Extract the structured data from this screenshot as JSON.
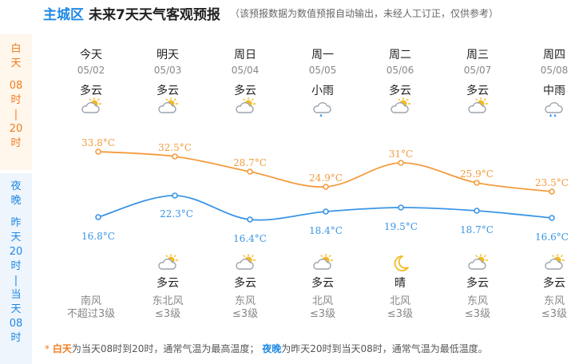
{
  "header": {
    "district": "主城区",
    "title": "未来7天天气客观预报",
    "note": "（该预报数据为数值预报自动输出，未经人工订正，仅供参考）"
  },
  "side": {
    "day": [
      "白",
      "天",
      "",
      "08",
      "时",
      "|",
      "20",
      "时"
    ],
    "night": [
      "夜",
      "晚",
      "",
      "昨",
      "天",
      "20",
      "时",
      "|",
      "当",
      "天",
      "08",
      "时"
    ]
  },
  "days": [
    {
      "name": "今天",
      "date": "05/02",
      "day_weather": "多云",
      "day_icon": "partly-cloudy-icon",
      "night_weather": "",
      "night_icon": "",
      "wind_dir": "南风",
      "wind_level": "不超过3级"
    },
    {
      "name": "明天",
      "date": "05/03",
      "day_weather": "多云",
      "day_icon": "partly-cloudy-icon",
      "night_weather": "多云",
      "night_icon": "partly-cloudy-icon",
      "wind_dir": "东北风",
      "wind_level": "≤3级"
    },
    {
      "name": "周日",
      "date": "05/04",
      "day_weather": "多云",
      "day_icon": "partly-cloudy-icon",
      "night_weather": "多云",
      "night_icon": "partly-cloudy-icon",
      "wind_dir": "东风",
      "wind_level": "≤3级"
    },
    {
      "name": "周一",
      "date": "05/05",
      "day_weather": "小雨",
      "day_icon": "light-rain-icon",
      "night_weather": "多云",
      "night_icon": "partly-cloudy-icon",
      "wind_dir": "北风",
      "wind_level": "≤3级"
    },
    {
      "name": "周二",
      "date": "05/06",
      "day_weather": "多云",
      "day_icon": "partly-cloudy-icon",
      "night_weather": "晴",
      "night_icon": "moon-icon",
      "wind_dir": "北风",
      "wind_level": "≤3级"
    },
    {
      "name": "周三",
      "date": "05/07",
      "day_weather": "多云",
      "day_icon": "partly-cloudy-icon",
      "night_weather": "多云",
      "night_icon": "partly-cloudy-icon",
      "wind_dir": "东风",
      "wind_level": "≤3级"
    },
    {
      "name": "周四",
      "date": "05/08",
      "day_weather": "中雨",
      "day_icon": "moderate-rain-icon",
      "night_weather": "多云",
      "night_icon": "partly-cloudy-icon",
      "wind_dir": "东风",
      "wind_level": "≤3级"
    }
  ],
  "chart_data": {
    "type": "line",
    "categories": [
      "05/02",
      "05/03",
      "05/04",
      "05/05",
      "05/06",
      "05/07",
      "05/08"
    ],
    "series": [
      {
        "values": [
          33.8,
          32.5,
          28.7,
          24.9,
          31,
          25.9,
          23.5
        ],
        "labels": [
          "33.8°C",
          "32.5°C",
          "28.7°C",
          "24.9°C",
          "31°C",
          "25.9°C",
          "23.5°C"
        ],
        "color": "#f39c3f"
      },
      {
        "values": [
          16.8,
          22.3,
          16.4,
          18.4,
          19.5,
          18.7,
          16.6
        ],
        "labels": [
          "16.8°C",
          "22.3°C",
          "16.4°C",
          "18.4°C",
          "19.5°C",
          "18.7°C",
          "16.6°C"
        ],
        "color": "#3a95e6"
      }
    ]
  },
  "footer": {
    "star": "*",
    "day_key": "白天",
    "day_text": "为当天08时到20时，通常气温为最高温度；",
    "night_key": "夜晚",
    "night_text": "为昨天20时到当天08时，通常气温为最低温度。"
  },
  "colors": {
    "accent": "#1e88e5",
    "day": "#f07d1e",
    "day_line": "#f39c3f",
    "night_line": "#3a95e6"
  }
}
